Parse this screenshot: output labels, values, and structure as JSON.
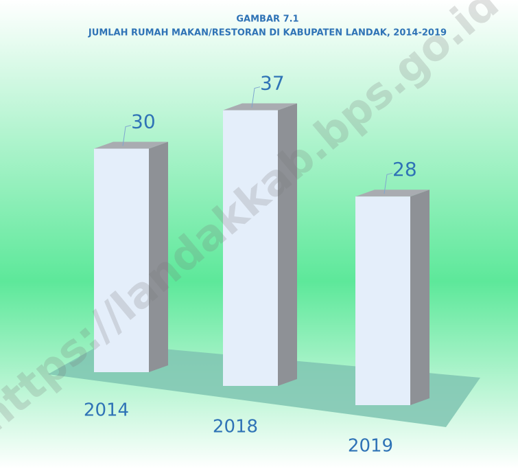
{
  "chart_data": {
    "type": "bar",
    "title": "GAMBAR 7.1",
    "subtitle": "JUMLAH RUMAH MAKAN/RESTORAN DI KABUPATEN LANDAK, 2014-2019",
    "categories": [
      "2014",
      "2018",
      "2019"
    ],
    "values": [
      30,
      37,
      28
    ],
    "color": "#e4eefa",
    "watermark": "https://landakkab.bps.go.id"
  }
}
